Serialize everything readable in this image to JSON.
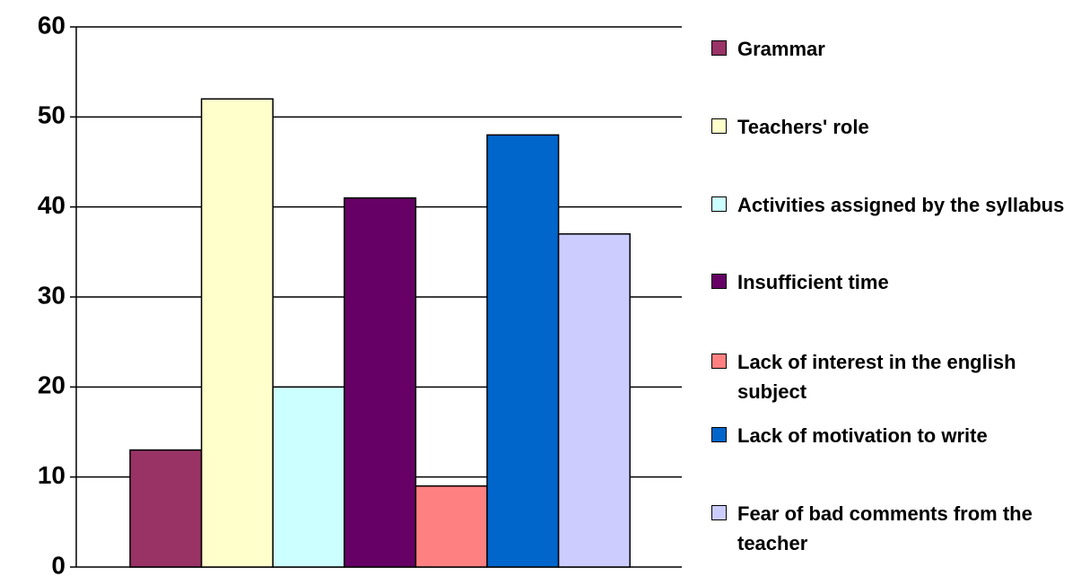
{
  "chart_data": {
    "type": "bar",
    "categories": [
      null
    ],
    "series": [
      {
        "name": "Grammar",
        "color": "#993366",
        "values": [
          13
        ]
      },
      {
        "name": "Teachers' role",
        "color": "#ffffcc",
        "values": [
          52
        ]
      },
      {
        "name": "Activities assigned by the syllabus",
        "color": "#ccffff",
        "values": [
          20
        ]
      },
      {
        "name": "Insufficient time",
        "color": "#660066",
        "values": [
          41
        ]
      },
      {
        "name": "Lack of interest in the english subject",
        "color": "#ff8080",
        "values": [
          9
        ]
      },
      {
        "name": "Lack of motivation to write",
        "color": "#0066cc",
        "values": [
          48
        ]
      },
      {
        "name": "Fear of bad comments from the teacher",
        "color": "#ccccff",
        "values": [
          37
        ]
      }
    ],
    "ylim": [
      0,
      60
    ],
    "yticks": [
      0,
      10,
      20,
      30,
      40,
      50,
      60
    ],
    "grid": true,
    "legend": "right"
  }
}
